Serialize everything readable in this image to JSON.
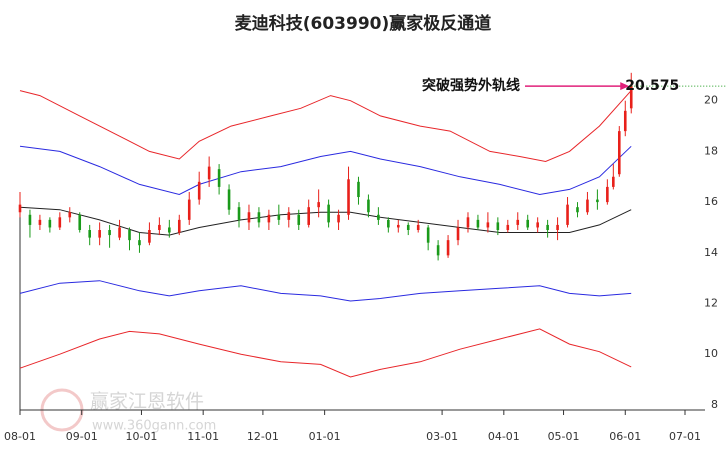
{
  "chart_data": {
    "type": "channel",
    "title": "麦迪科技(603990)赢家极反通道",
    "xlim": [
      0,
      334
    ],
    "xticks": [
      {
        "value": 0,
        "label": "08-01"
      },
      {
        "value": 31,
        "label": "09-01"
      },
      {
        "value": 61,
        "label": "10-01"
      },
      {
        "value": 92,
        "label": "11-01"
      },
      {
        "value": 122,
        "label": "12-01"
      },
      {
        "value": 153,
        "label": "01-01"
      },
      {
        "value": 212,
        "label": "03-01"
      },
      {
        "value": 243,
        "label": "04-01"
      },
      {
        "value": 273,
        "label": "05-01"
      },
      {
        "value": 304,
        "label": "06-01"
      },
      {
        "value": 334,
        "label": "07-01"
      }
    ],
    "ylim": [
      7.8,
      22
    ],
    "yticks": [
      8,
      10,
      12,
      14,
      16,
      18,
      20
    ],
    "series": [
      {
        "color": "#e8262a",
        "x": [
          0,
          10,
          30,
          50,
          65,
          80,
          90,
          106,
          126,
          141,
          156,
          166,
          181,
          201,
          216,
          236,
          251,
          264,
          276,
          291,
          307
        ],
        "values": [
          20.4,
          20.2,
          19.4,
          18.6,
          18.0,
          17.7,
          18.4,
          19.0,
          19.4,
          19.7,
          20.2,
          20.0,
          19.4,
          19.0,
          18.8,
          18.0,
          17.8,
          17.6,
          18.0,
          19.0,
          20.4
        ]
      },
      {
        "color": "#2a2ae0",
        "x": [
          0,
          20,
          40,
          60,
          80,
          90,
          111,
          131,
          151,
          166,
          181,
          201,
          221,
          241,
          261,
          276,
          291,
          307
        ],
        "values": [
          18.2,
          18.0,
          17.4,
          16.7,
          16.3,
          16.7,
          17.2,
          17.4,
          17.8,
          18.0,
          17.7,
          17.4,
          17.0,
          16.7,
          16.3,
          16.5,
          17.0,
          18.2
        ]
      },
      {
        "color": "#222222",
        "x": [
          0,
          20,
          40,
          60,
          75,
          90,
          111,
          131,
          151,
          166,
          181,
          201,
          221,
          241,
          261,
          276,
          291,
          307
        ],
        "values": [
          15.8,
          15.7,
          15.3,
          14.8,
          14.7,
          15.0,
          15.3,
          15.5,
          15.6,
          15.6,
          15.4,
          15.2,
          15.0,
          14.8,
          14.8,
          14.8,
          15.1,
          15.7
        ]
      },
      {
        "color": "#2a2ae0",
        "x": [
          0,
          20,
          40,
          60,
          75,
          90,
          111,
          131,
          151,
          166,
          181,
          201,
          221,
          241,
          261,
          276,
          291,
          307
        ],
        "values": [
          12.4,
          12.8,
          12.9,
          12.5,
          12.3,
          12.5,
          12.7,
          12.4,
          12.3,
          12.1,
          12.2,
          12.4,
          12.5,
          12.6,
          12.7,
          12.4,
          12.3,
          12.4
        ]
      },
      {
        "color": "#e8262a",
        "x": [
          0,
          20,
          40,
          55,
          70,
          90,
          111,
          131,
          151,
          166,
          181,
          201,
          221,
          241,
          261,
          276,
          291,
          307
        ],
        "values": [
          9.45,
          10.0,
          10.6,
          10.9,
          10.8,
          10.4,
          10.0,
          9.7,
          9.6,
          9.1,
          9.4,
          9.7,
          10.2,
          10.6,
          11.0,
          10.4,
          10.1,
          9.5
        ]
      }
    ],
    "candles": {
      "up_color": "#e8201a",
      "down_color": "#1a9a1a",
      "x": [
        0,
        5,
        10,
        15,
        20,
        25,
        30,
        35,
        40,
        45,
        50,
        55,
        60,
        65,
        70,
        75,
        80,
        85,
        90,
        95,
        100,
        105,
        110,
        115,
        120,
        125,
        130,
        135,
        140,
        145,
        150,
        155,
        160,
        165,
        170,
        175,
        180,
        185,
        190,
        195,
        200,
        205,
        210,
        215,
        220,
        225,
        230,
        235,
        240,
        245,
        250,
        255,
        260,
        265,
        270,
        275,
        280,
        285,
        290,
        295,
        298,
        301,
        304,
        307
      ],
      "open": [
        15.6,
        15.5,
        15.1,
        15.3,
        15.0,
        15.4,
        15.5,
        14.9,
        14.6,
        14.9,
        14.6,
        14.9,
        14.5,
        14.4,
        14.9,
        15.0,
        14.8,
        15.3,
        16.1,
        16.9,
        17.3,
        16.5,
        15.8,
        15.2,
        15.6,
        15.2,
        15.5,
        15.3,
        15.5,
        15.1,
        15.8,
        15.9,
        15.2,
        15.5,
        16.8,
        16.1,
        15.5,
        15.3,
        15.0,
        15.1,
        14.9,
        15.0,
        14.3,
        13.9,
        14.5,
        15.0,
        15.3,
        15.0,
        15.2,
        14.9,
        15.1,
        15.3,
        15.0,
        15.1,
        14.9,
        15.1,
        15.8,
        15.6,
        16.1,
        16.0,
        16.6,
        17.1,
        18.8,
        19.7
      ],
      "close": [
        15.9,
        15.1,
        15.3,
        15.0,
        15.4,
        15.6,
        14.9,
        14.6,
        14.9,
        14.7,
        15.0,
        14.5,
        14.3,
        14.9,
        15.1,
        14.8,
        15.3,
        16.1,
        16.8,
        17.4,
        16.6,
        15.7,
        15.3,
        15.6,
        15.2,
        15.5,
        15.3,
        15.6,
        15.1,
        15.8,
        16.0,
        15.2,
        15.5,
        16.9,
        16.2,
        15.6,
        15.3,
        15.0,
        15.1,
        14.9,
        15.1,
        14.4,
        13.9,
        14.5,
        15.0,
        15.4,
        15.0,
        15.2,
        14.9,
        15.1,
        15.3,
        15.0,
        15.2,
        14.9,
        15.1,
        15.9,
        15.6,
        16.1,
        16.0,
        16.6,
        17.0,
        18.8,
        19.6,
        20.6
      ],
      "high": [
        16.4,
        15.7,
        15.5,
        15.4,
        15.6,
        15.8,
        15.6,
        15.1,
        15.2,
        15.1,
        15.3,
        15.0,
        14.8,
        15.2,
        15.4,
        15.3,
        15.5,
        16.4,
        17.2,
        17.8,
        17.5,
        16.7,
        16.0,
        15.9,
        15.8,
        15.7,
        15.9,
        15.8,
        15.7,
        16.1,
        16.5,
        16.1,
        15.7,
        17.4,
        17.0,
        16.3,
        15.8,
        15.4,
        15.3,
        15.2,
        15.3,
        15.1,
        14.5,
        14.7,
        15.3,
        15.6,
        15.5,
        15.6,
        15.4,
        15.3,
        15.6,
        15.5,
        15.4,
        15.3,
        15.4,
        16.2,
        16.0,
        16.4,
        16.5,
        16.9,
        17.5,
        19.0,
        20.0,
        21.1
      ],
      "low": [
        15.4,
        14.6,
        14.9,
        14.8,
        14.9,
        15.2,
        14.8,
        14.3,
        14.3,
        14.2,
        14.5,
        14.1,
        14.0,
        14.3,
        14.7,
        14.6,
        14.7,
        15.1,
        15.9,
        16.6,
        16.3,
        15.5,
        15.0,
        14.9,
        15.0,
        14.9,
        15.1,
        15.0,
        14.9,
        15.0,
        15.4,
        15.0,
        14.9,
        15.3,
        15.9,
        15.4,
        15.1,
        14.8,
        14.8,
        14.7,
        14.8,
        14.1,
        13.7,
        13.8,
        14.3,
        14.8,
        14.9,
        14.8,
        14.7,
        14.8,
        14.9,
        14.9,
        14.8,
        14.6,
        14.5,
        15.0,
        15.4,
        15.5,
        15.7,
        15.9,
        16.5,
        17.0,
        18.6,
        19.5
      ]
    },
    "annotation": {
      "text": "突破强势外轨线",
      "value": 20.575,
      "color": "#e0207a"
    },
    "watermark": [
      "赢家江恩软件",
      "www.360gann.com"
    ]
  }
}
